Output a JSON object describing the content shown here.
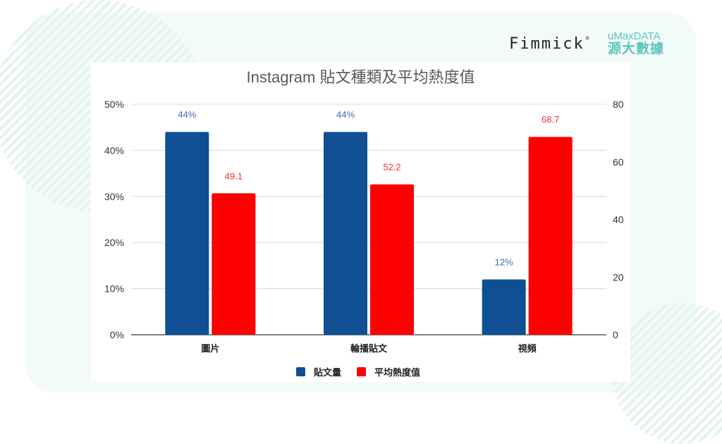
{
  "logos": {
    "fimmick": "Fimmick",
    "fimmick_mark": "®",
    "umax_en": "uMaxDATA",
    "umax_zh": "源大數據"
  },
  "colors": {
    "series1": "#0e5093",
    "series2": "#ff0000",
    "background_mint": "#f2fbf7",
    "logo_teal": "#5bc4c0"
  },
  "chart_data": {
    "type": "bar",
    "title": "Instagram 貼文種類及平均熱度值",
    "categories": [
      "圖片",
      "輪播貼文",
      "視頻"
    ],
    "series": [
      {
        "name": "貼文量",
        "axis": "left",
        "values": [
          44,
          44,
          12
        ],
        "labels": [
          "44%",
          "44%",
          "12%"
        ],
        "color": "#0e5093"
      },
      {
        "name": "平均熱度值",
        "axis": "right",
        "values": [
          49.1,
          52.2,
          68.7
        ],
        "labels": [
          "49.1",
          "52.2",
          "68.7"
        ],
        "color": "#ff0000"
      }
    ],
    "y_left": {
      "ticks": [
        "0%",
        "10%",
        "20%",
        "30%",
        "40%",
        "50%"
      ],
      "ylim": [
        0,
        50
      ]
    },
    "y_right": {
      "ticks": [
        "0",
        "20",
        "40",
        "60",
        "80"
      ],
      "ylim": [
        0,
        80
      ]
    },
    "xlabel": "",
    "ylabel": "",
    "grid": true,
    "legend_position": "bottom"
  }
}
